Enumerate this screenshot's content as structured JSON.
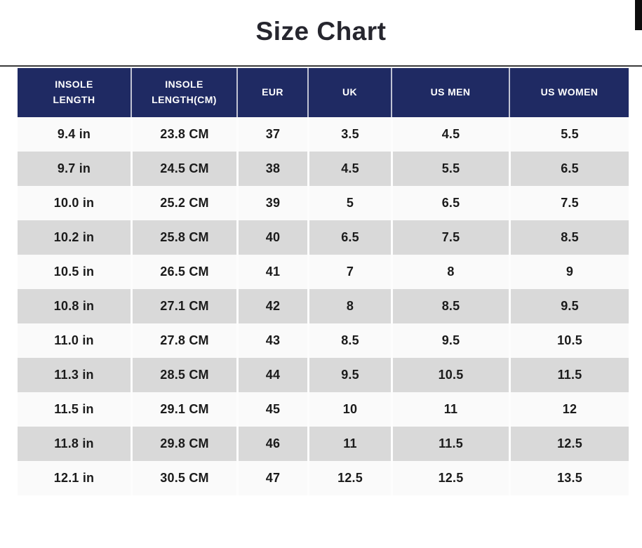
{
  "title": "Size Chart",
  "scrollbar": {
    "visible": true
  },
  "table": {
    "headers": [
      "INSOLE LENGTH",
      "INSOLE LENGTH(CM)",
      "EUR",
      "UK",
      "US MEN",
      "US WOMEN"
    ],
    "rows": [
      [
        "9.4 in",
        "23.8 CM",
        "37",
        "3.5",
        "4.5",
        "5.5"
      ],
      [
        "9.7 in",
        "24.5 CM",
        "38",
        "4.5",
        "5.5",
        "6.5"
      ],
      [
        "10.0 in",
        "25.2 CM",
        "39",
        "5",
        "6.5",
        "7.5"
      ],
      [
        "10.2 in",
        "25.8 CM",
        "40",
        "6.5",
        "7.5",
        "8.5"
      ],
      [
        "10.5 in",
        "26.5 CM",
        "41",
        "7",
        "8",
        "9"
      ],
      [
        "10.8 in",
        "27.1 CM",
        "42",
        "8",
        "8.5",
        "9.5"
      ],
      [
        "11.0 in",
        "27.8 CM",
        "43",
        "8.5",
        "9.5",
        "10.5"
      ],
      [
        "11.3 in",
        "28.5 CM",
        "44",
        "9.5",
        "10.5",
        "11.5"
      ],
      [
        "11.5 in",
        "29.1 CM",
        "45",
        "10",
        "11",
        "12"
      ],
      [
        "11.8 in",
        "29.8 CM",
        "46",
        "11",
        "11.5",
        "12.5"
      ],
      [
        "12.1 in",
        "30.5 CM",
        "47",
        "12.5",
        "12.5",
        "13.5"
      ]
    ]
  },
  "colors": {
    "header_bg": "#1f2a63",
    "header_text": "#ffffff",
    "row_bg": "#fafafa",
    "row_alt_bg": "#d9d9d9",
    "body_text": "#1b1b1b",
    "title_text": "#26262e",
    "divider": "#3a3a3a",
    "scrollbar": "#0d0d0d"
  }
}
